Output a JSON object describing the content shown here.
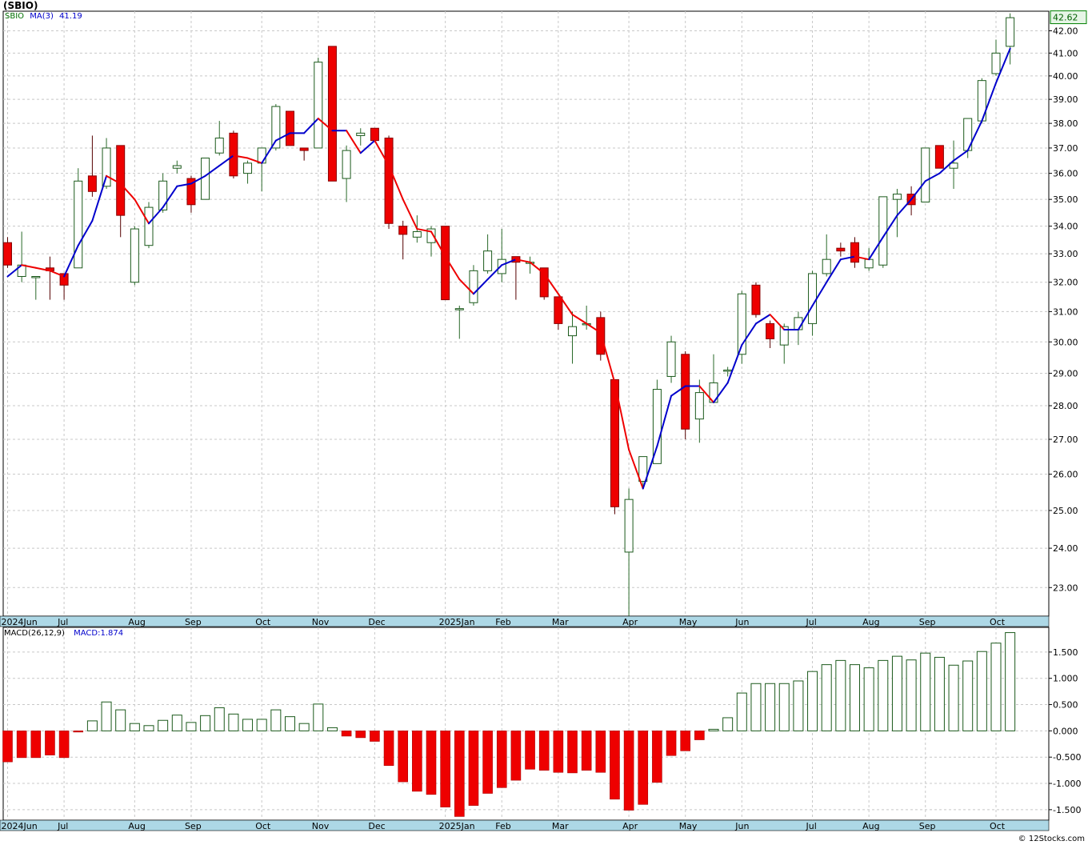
{
  "title": "(SBIO)",
  "price_legend": {
    "ticker": "SBIO",
    "ma_label": "MA(3)",
    "ma_value": "41.19"
  },
  "macd_legend": {
    "label": "MACD(26,12,9)",
    "value": "MACD:1.874"
  },
  "footer": "© 12Stocks.com",
  "colors": {
    "up": "#1c5a1c",
    "down": "#ee0000",
    "ma_up": "#0000cc",
    "ma_down": "#ee0000",
    "axis_band": "#add8e6",
    "grid": "#c8c8c8",
    "last_price_box": "#008000"
  },
  "chart_data": [
    {
      "type": "candlestick",
      "title": "(SBIO)",
      "ylim": [
        22.3,
        42.9
      ],
      "y_scale": "log",
      "y_ticks": [
        "23.00",
        "24.00",
        "25.00",
        "26.00",
        "27.00",
        "28.00",
        "29.00",
        "30.00",
        "31.00",
        "32.00",
        "33.00",
        "34.00",
        "35.00",
        "36.00",
        "37.00",
        "38.00",
        "39.00",
        "40.00",
        "41.00",
        "42.00"
      ],
      "last_price": "42.62",
      "x_tick_labels": [
        {
          "label": "2024Jun",
          "week": 0
        },
        {
          "label": "Jul",
          "week": 4
        },
        {
          "label": "Aug",
          "week": 9
        },
        {
          "label": "Sep",
          "week": 13
        },
        {
          "label": "Oct",
          "week": 18
        },
        {
          "label": "Nov",
          "week": 22
        },
        {
          "label": "Dec",
          "week": 26
        },
        {
          "label": "2025Jan",
          "week": 31
        },
        {
          "label": "Feb",
          "week": 35
        },
        {
          "label": "Mar",
          "week": 39
        },
        {
          "label": "Apr",
          "week": 44
        },
        {
          "label": "May",
          "week": 48
        },
        {
          "label": "Jun",
          "week": 52
        },
        {
          "label": "Jul",
          "week": 57
        },
        {
          "label": "Aug",
          "week": 61
        },
        {
          "label": "Sep",
          "week": 65
        },
        {
          "label": "Oct",
          "week": 70
        }
      ],
      "candles": [
        {
          "o": 33.4,
          "h": 33.6,
          "l": 32.5,
          "c": 32.6
        },
        {
          "o": 32.2,
          "h": 33.8,
          "l": 32.0,
          "c": 32.6
        },
        {
          "o": 32.2,
          "h": 32.2,
          "l": 31.4,
          "c": 32.2
        },
        {
          "o": 32.5,
          "h": 32.9,
          "l": 31.4,
          "c": 32.4
        },
        {
          "o": 32.3,
          "h": 32.3,
          "l": 31.4,
          "c": 31.9
        },
        {
          "o": 32.5,
          "h": 36.2,
          "l": 32.5,
          "c": 35.7
        },
        {
          "o": 35.9,
          "h": 37.5,
          "l": 35.1,
          "c": 35.3
        },
        {
          "o": 35.5,
          "h": 37.4,
          "l": 35.4,
          "c": 37.0
        },
        {
          "o": 37.1,
          "h": 37.1,
          "l": 33.6,
          "c": 34.4
        },
        {
          "o": 32.0,
          "h": 34.0,
          "l": 31.9,
          "c": 33.9
        },
        {
          "o": 33.3,
          "h": 34.9,
          "l": 33.2,
          "c": 34.7
        },
        {
          "o": 34.6,
          "h": 36.0,
          "l": 34.5,
          "c": 35.7
        },
        {
          "o": 36.2,
          "h": 36.5,
          "l": 36.0,
          "c": 36.3
        },
        {
          "o": 35.8,
          "h": 35.9,
          "l": 34.5,
          "c": 34.8
        },
        {
          "o": 35.0,
          "h": 36.6,
          "l": 35.0,
          "c": 36.6
        },
        {
          "o": 36.8,
          "h": 38.1,
          "l": 36.7,
          "c": 37.4
        },
        {
          "o": 37.6,
          "h": 37.7,
          "l": 35.8,
          "c": 35.9
        },
        {
          "o": 36.0,
          "h": 36.5,
          "l": 35.6,
          "c": 36.4
        },
        {
          "o": 36.4,
          "h": 37.0,
          "l": 35.3,
          "c": 37.0
        },
        {
          "o": 37.0,
          "h": 38.8,
          "l": 36.9,
          "c": 38.7
        },
        {
          "o": 38.5,
          "h": 38.5,
          "l": 37.1,
          "c": 37.1
        },
        {
          "o": 37.0,
          "h": 37.0,
          "l": 36.5,
          "c": 36.9
        },
        {
          "o": 37.0,
          "h": 40.8,
          "l": 37.0,
          "c": 40.6
        },
        {
          "o": 41.3,
          "h": 41.3,
          "l": 35.7,
          "c": 35.7
        },
        {
          "o": 35.8,
          "h": 37.1,
          "l": 34.9,
          "c": 36.9
        },
        {
          "o": 37.5,
          "h": 37.8,
          "l": 37.1,
          "c": 37.6
        },
        {
          "o": 37.8,
          "h": 37.8,
          "l": 37.3,
          "c": 37.3
        },
        {
          "o": 37.4,
          "h": 37.5,
          "l": 33.9,
          "c": 34.1
        },
        {
          "o": 34.0,
          "h": 34.2,
          "l": 32.8,
          "c": 33.7
        },
        {
          "o": 33.6,
          "h": 34.4,
          "l": 33.4,
          "c": 33.8
        },
        {
          "o": 33.4,
          "h": 34.0,
          "l": 32.9,
          "c": 33.9
        },
        {
          "o": 34.0,
          "h": 34.0,
          "l": 31.4,
          "c": 31.4
        },
        {
          "o": 31.1,
          "h": 31.2,
          "l": 30.1,
          "c": 31.1
        },
        {
          "o": 31.3,
          "h": 32.6,
          "l": 31.2,
          "c": 32.4
        },
        {
          "o": 32.4,
          "h": 33.7,
          "l": 32.3,
          "c": 33.1
        },
        {
          "o": 32.3,
          "h": 33.9,
          "l": 32.0,
          "c": 32.8
        },
        {
          "o": 32.9,
          "h": 32.9,
          "l": 31.4,
          "c": 32.7
        },
        {
          "o": 32.7,
          "h": 32.9,
          "l": 32.3,
          "c": 32.7
        },
        {
          "o": 32.5,
          "h": 32.5,
          "l": 31.4,
          "c": 31.5
        },
        {
          "o": 31.5,
          "h": 31.5,
          "l": 30.4,
          "c": 30.6
        },
        {
          "o": 30.2,
          "h": 31.0,
          "l": 29.3,
          "c": 30.5
        },
        {
          "o": 30.6,
          "h": 31.2,
          "l": 30.4,
          "c": 30.6
        },
        {
          "o": 30.8,
          "h": 31.0,
          "l": 29.4,
          "c": 29.6
        },
        {
          "o": 28.8,
          "h": 28.8,
          "l": 24.9,
          "c": 25.1
        },
        {
          "o": 23.9,
          "h": 25.6,
          "l": 22.3,
          "c": 25.3
        },
        {
          "o": 25.8,
          "h": 26.5,
          "l": 25.6,
          "c": 26.5
        },
        {
          "o": 26.3,
          "h": 28.8,
          "l": 26.3,
          "c": 28.5
        },
        {
          "o": 28.9,
          "h": 30.2,
          "l": 28.7,
          "c": 30.0
        },
        {
          "o": 29.6,
          "h": 29.7,
          "l": 27.0,
          "c": 27.3
        },
        {
          "o": 27.6,
          "h": 28.8,
          "l": 26.9,
          "c": 28.4
        },
        {
          "o": 28.1,
          "h": 29.6,
          "l": 28.1,
          "c": 28.7
        },
        {
          "o": 29.1,
          "h": 29.2,
          "l": 28.9,
          "c": 29.1
        },
        {
          "o": 29.6,
          "h": 31.7,
          "l": 29.3,
          "c": 31.6
        },
        {
          "o": 31.9,
          "h": 32.0,
          "l": 30.8,
          "c": 30.9
        },
        {
          "o": 30.6,
          "h": 30.7,
          "l": 29.8,
          "c": 30.1
        },
        {
          "o": 29.9,
          "h": 30.6,
          "l": 29.3,
          "c": 30.5
        },
        {
          "o": 30.4,
          "h": 31.0,
          "l": 29.9,
          "c": 30.8
        },
        {
          "o": 30.6,
          "h": 32.4,
          "l": 30.2,
          "c": 32.3
        },
        {
          "o": 32.3,
          "h": 33.7,
          "l": 32.2,
          "c": 32.8
        },
        {
          "o": 33.2,
          "h": 33.4,
          "l": 32.9,
          "c": 33.1
        },
        {
          "o": 33.4,
          "h": 33.6,
          "l": 32.5,
          "c": 32.7
        },
        {
          "o": 32.5,
          "h": 33.2,
          "l": 32.4,
          "c": 32.8
        },
        {
          "o": 32.6,
          "h": 35.1,
          "l": 32.5,
          "c": 35.1
        },
        {
          "o": 35.0,
          "h": 35.4,
          "l": 33.6,
          "c": 35.2
        },
        {
          "o": 35.2,
          "h": 35.5,
          "l": 34.4,
          "c": 34.8
        },
        {
          "o": 34.9,
          "h": 37.0,
          "l": 34.9,
          "c": 37.0
        },
        {
          "o": 37.1,
          "h": 37.1,
          "l": 36.2,
          "c": 36.2
        },
        {
          "o": 36.2,
          "h": 37.3,
          "l": 35.4,
          "c": 36.4
        },
        {
          "o": 36.9,
          "h": 38.2,
          "l": 36.6,
          "c": 38.2
        },
        {
          "o": 38.1,
          "h": 39.9,
          "l": 38.0,
          "c": 39.8
        },
        {
          "o": 40.1,
          "h": 41.6,
          "l": 40.0,
          "c": 41.0
        },
        {
          "o": 41.3,
          "h": 42.8,
          "l": 40.5,
          "c": 42.6
        }
      ],
      "series": [
        {
          "name": "MA(3)",
          "values": [
            32.2,
            32.6,
            32.5,
            32.4,
            32.2,
            33.3,
            34.2,
            35.9,
            35.6,
            35.0,
            34.1,
            34.7,
            35.5,
            35.6,
            35.9,
            36.3,
            36.7,
            36.6,
            36.4,
            37.3,
            37.6,
            37.6,
            38.2,
            37.7,
            37.7,
            36.8,
            37.3,
            36.3,
            35.0,
            33.9,
            33.8,
            32.9,
            32.1,
            31.6,
            32.1,
            32.6,
            32.8,
            32.7,
            32.3,
            31.6,
            30.9,
            30.6,
            30.3,
            28.7,
            26.7,
            25.6,
            26.8,
            28.3,
            28.6,
            28.6,
            28.1,
            28.7,
            29.9,
            30.6,
            30.9,
            30.4,
            30.4,
            31.2,
            32.0,
            32.8,
            32.9,
            32.8,
            33.6,
            34.4,
            35.0,
            35.7,
            36.0,
            36.5,
            36.9,
            38.1,
            39.7,
            41.2
          ]
        }
      ]
    },
    {
      "type": "bar",
      "title": "MACD(26,12,9)",
      "ylim": [
        -1.7,
        1.97
      ],
      "y_ticks": [
        "-1.500",
        "-1.000",
        "-0.500",
        "0.000",
        "0.500",
        "1.000",
        "1.500"
      ],
      "x_tick_labels": [
        {
          "label": "2024Jun",
          "week": 0
        },
        {
          "label": "Jul",
          "week": 4
        },
        {
          "label": "Aug",
          "week": 9
        },
        {
          "label": "Sep",
          "week": 13
        },
        {
          "label": "Oct",
          "week": 18
        },
        {
          "label": "Nov",
          "week": 22
        },
        {
          "label": "Dec",
          "week": 26
        },
        {
          "label": "2025Jan",
          "week": 31
        },
        {
          "label": "Feb",
          "week": 35
        },
        {
          "label": "Mar",
          "week": 39
        },
        {
          "label": "Apr",
          "week": 44
        },
        {
          "label": "May",
          "week": 48
        },
        {
          "label": "Jun",
          "week": 52
        },
        {
          "label": "Jul",
          "week": 57
        },
        {
          "label": "Aug",
          "week": 61
        },
        {
          "label": "Sep",
          "week": 65
        },
        {
          "label": "Oct",
          "week": 70
        }
      ],
      "values": [
        -0.59,
        -0.51,
        -0.51,
        -0.46,
        -0.51,
        -0.02,
        0.19,
        0.55,
        0.4,
        0.14,
        0.1,
        0.2,
        0.3,
        0.16,
        0.29,
        0.44,
        0.32,
        0.22,
        0.22,
        0.4,
        0.27,
        0.14,
        0.51,
        0.06,
        -0.1,
        -0.13,
        -0.2,
        -0.66,
        -0.97,
        -1.15,
        -1.21,
        -1.45,
        -1.63,
        -1.42,
        -1.19,
        -1.08,
        -0.94,
        -0.73,
        -0.75,
        -0.79,
        -0.8,
        -0.75,
        -0.79,
        -1.3,
        -1.51,
        -1.4,
        -0.98,
        -0.47,
        -0.38,
        -0.17,
        0.03,
        0.25,
        0.72,
        0.9,
        0.9,
        0.9,
        0.95,
        1.13,
        1.26,
        1.34,
        1.26,
        1.2,
        1.34,
        1.42,
        1.35,
        1.48,
        1.4,
        1.25,
        1.33,
        1.51,
        1.67,
        1.87
      ]
    }
  ]
}
